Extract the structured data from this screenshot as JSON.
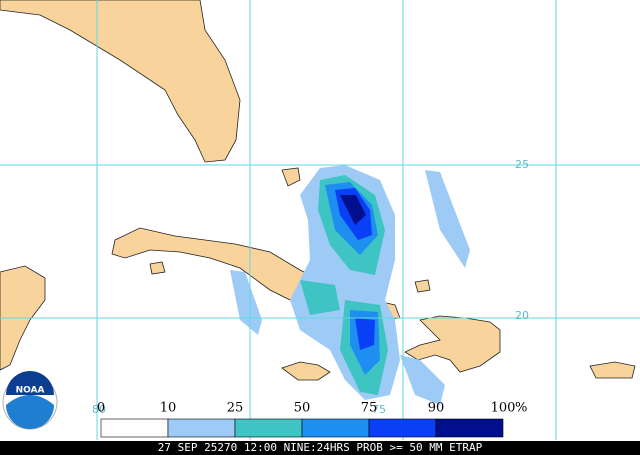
{
  "grid_labels": {
    "lat": [
      "25",
      "20"
    ],
    "lon": [
      "80",
      "75"
    ]
  },
  "legend": {
    "labels": [
      "0",
      "10",
      "25",
      "50",
      "75",
      "90",
      "100"
    ],
    "unit": "%",
    "colors": [
      "#ffffff",
      "#9ecbf5",
      "#3fc4c4",
      "#1e8ef0",
      "#0a40f5",
      "#00108c"
    ]
  },
  "logo": "NOAA",
  "footer": "27 SEP 25270 12:00 NINE:24HRS PROB >= 50 MM ETRAP"
}
